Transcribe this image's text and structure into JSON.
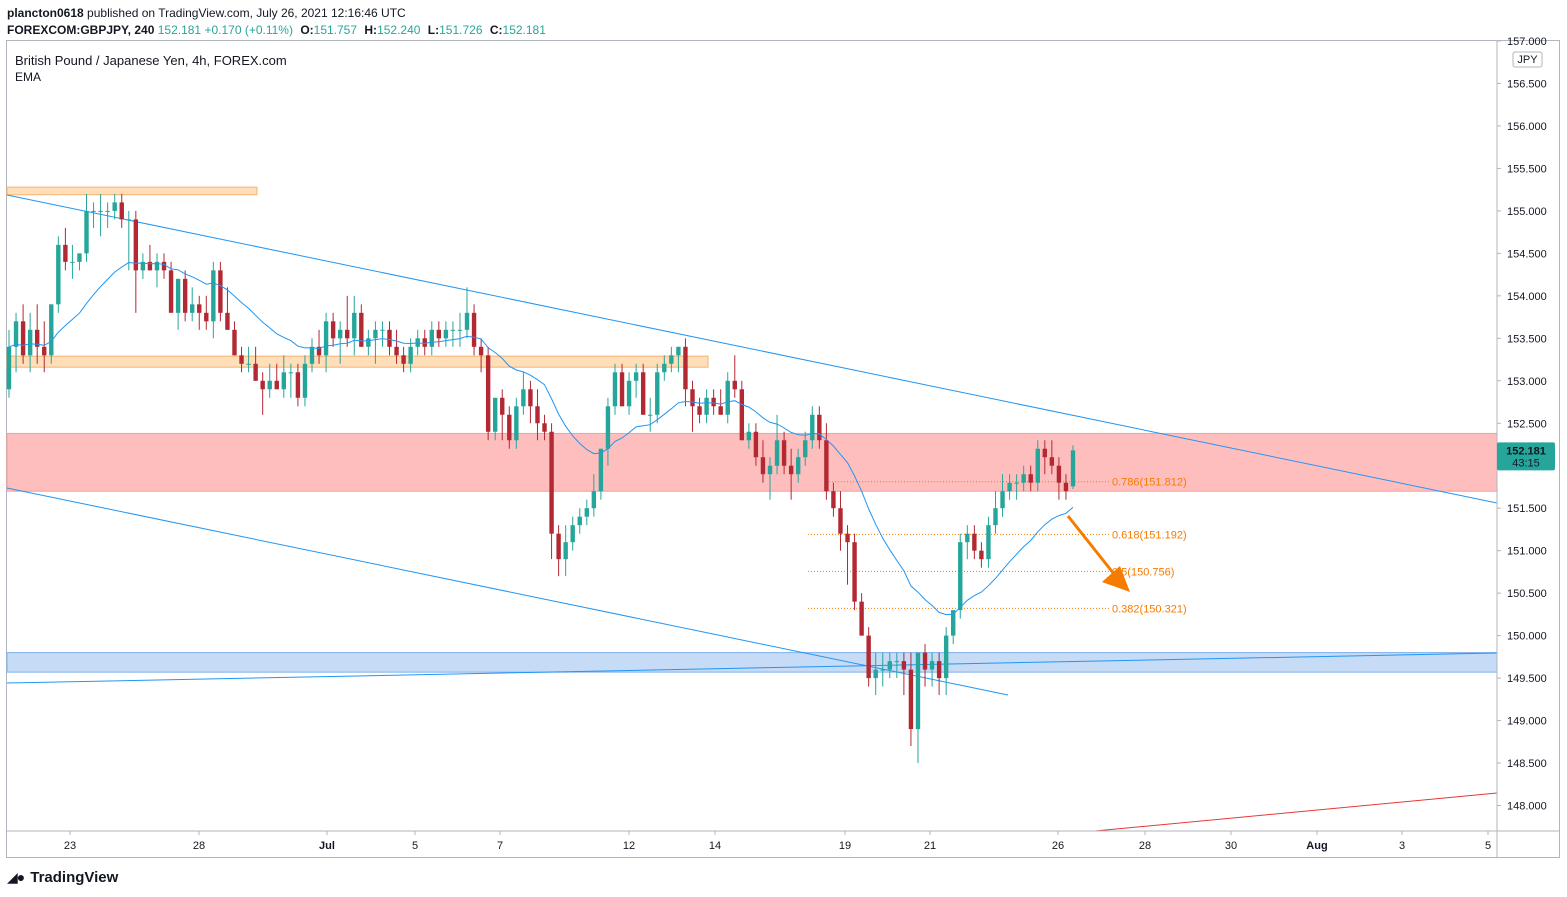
{
  "header": {
    "author": "plancton0618",
    "published_text": "published on TradingView.com, July 26, 2021 12:16:46 UTC",
    "symbol_interval": "FOREXCOM:GBPJPY, 240",
    "last": "152.181",
    "change": "+0.170 (+0.11%)",
    "open_label": "O:",
    "open": "151.757",
    "high_label": "H:",
    "high": "152.240",
    "low_label": "L:",
    "low": "151.726",
    "close_label": "C:",
    "close": "152.181"
  },
  "legend": {
    "title": "British Pound / Japanese Yen, 4h, FOREX.com",
    "indicator": "EMA"
  },
  "currency_badge": "JPY",
  "price_tag": {
    "price": "152.181",
    "countdown": "43:15"
  },
  "brand": {
    "logo_icon": "tradingview-logo-icon",
    "name": "TradingView"
  },
  "colors": {
    "up": "#26a69a",
    "down": "#b22833",
    "ema": "#2196f3",
    "fib": "#f57c00",
    "resistance_zone": "#ffb3b3",
    "supply_zone": "#ffd8ae",
    "support_zone": "#bcd5f5",
    "arrow": "#f57c00",
    "red_line": "#e53935"
  },
  "chart_data": {
    "type": "candlestick",
    "title": "British Pound / Japanese Yen, 4h, FOREX.com",
    "ylim": [
      147.7,
      157.0
    ],
    "y_ticks": [
      "157.000",
      "156.500",
      "156.000",
      "155.500",
      "155.000",
      "154.500",
      "154.000",
      "153.500",
      "153.000",
      "152.500",
      "152.000",
      "151.500",
      "151.000",
      "150.500",
      "150.000",
      "149.500",
      "149.000",
      "148.500",
      "148.000"
    ],
    "x_ticks": [
      "23",
      "28",
      "Jul",
      "5",
      "7",
      "12",
      "14",
      "19",
      "21",
      "26",
      "28",
      "30",
      "Aug",
      "3",
      "5"
    ],
    "zones": [
      {
        "name": "resistance",
        "from": 151.7,
        "to": 152.38
      },
      {
        "name": "supply-1",
        "from": 155.19,
        "to": 155.28
      },
      {
        "name": "supply-2",
        "from": 153.16,
        "to": 153.29
      },
      {
        "name": "support",
        "from": 149.57,
        "to": 149.8
      }
    ],
    "fib_levels": [
      {
        "label": "0.786(151.812)",
        "value": 151.812
      },
      {
        "label": "0.618(151.192)",
        "value": 151.192
      },
      {
        "label": "0.5(150.756)",
        "value": 150.756
      },
      {
        "label": "0.382(150.321)",
        "value": 150.321
      }
    ],
    "last_price": 152.181,
    "candles_ohlc": [
      [
        152.9,
        153.6,
        152.8,
        153.4
      ],
      [
        153.4,
        153.8,
        153.1,
        153.7
      ],
      [
        153.7,
        153.9,
        153.2,
        153.3
      ],
      [
        153.3,
        153.8,
        153.1,
        153.6
      ],
      [
        153.6,
        153.9,
        153.2,
        153.4
      ],
      [
        153.4,
        153.7,
        153.1,
        153.3
      ],
      [
        153.3,
        153.9,
        153.2,
        153.9
      ],
      [
        153.9,
        154.7,
        153.8,
        154.6
      ],
      [
        154.6,
        154.8,
        154.3,
        154.4
      ],
      [
        154.4,
        154.6,
        154.2,
        154.4
      ],
      [
        154.4,
        154.5,
        154.3,
        154.5
      ],
      [
        154.5,
        155.2,
        154.4,
        155.0
      ],
      [
        155.0,
        155.1,
        154.8,
        155.0
      ],
      [
        155.0,
        155.2,
        154.7,
        155.0
      ],
      [
        155.0,
        155.1,
        154.8,
        155.0
      ],
      [
        155.0,
        155.2,
        154.9,
        155.1
      ],
      [
        155.1,
        155.2,
        154.8,
        154.9
      ],
      [
        154.9,
        155.0,
        154.3,
        154.9
      ],
      [
        154.9,
        155.0,
        153.8,
        154.3
      ],
      [
        154.3,
        154.5,
        154.2,
        154.4
      ],
      [
        154.4,
        154.6,
        154.3,
        154.3
      ],
      [
        154.3,
        154.5,
        154.1,
        154.4
      ],
      [
        154.4,
        154.5,
        154.2,
        154.3
      ],
      [
        154.3,
        154.4,
        153.9,
        153.8
      ],
      [
        153.8,
        154.2,
        153.6,
        154.2
      ],
      [
        154.2,
        154.3,
        153.7,
        153.8
      ],
      [
        153.8,
        154.1,
        153.7,
        153.9
      ],
      [
        153.9,
        154.0,
        153.6,
        153.8
      ],
      [
        153.8,
        154.0,
        153.6,
        153.7
      ],
      [
        153.7,
        154.4,
        153.5,
        154.3
      ],
      [
        154.3,
        154.4,
        153.7,
        153.8
      ],
      [
        153.8,
        154.1,
        153.6,
        153.6
      ],
      [
        153.6,
        153.7,
        153.3,
        153.3
      ],
      [
        153.3,
        153.4,
        153.1,
        153.2
      ],
      [
        153.2,
        153.4,
        153.1,
        153.2
      ],
      [
        153.2,
        153.4,
        153.0,
        153.0
      ],
      [
        153.0,
        153.1,
        152.6,
        152.9
      ],
      [
        152.9,
        153.2,
        152.8,
        153.0
      ],
      [
        153.0,
        153.2,
        152.9,
        152.9
      ],
      [
        152.9,
        153.3,
        152.8,
        153.1
      ],
      [
        153.1,
        153.2,
        152.8,
        153.1
      ],
      [
        153.1,
        153.2,
        152.7,
        152.8
      ],
      [
        152.8,
        153.3,
        152.7,
        153.2
      ],
      [
        153.2,
        153.5,
        153.1,
        153.4
      ],
      [
        153.4,
        153.6,
        153.2,
        153.3
      ],
      [
        153.3,
        153.8,
        153.1,
        153.7
      ],
      [
        153.7,
        153.8,
        153.4,
        153.5
      ],
      [
        153.5,
        153.7,
        153.2,
        153.6
      ],
      [
        153.6,
        154.0,
        153.4,
        153.5
      ],
      [
        153.5,
        154.0,
        153.3,
        153.8
      ],
      [
        153.8,
        153.9,
        153.4,
        153.4
      ],
      [
        153.4,
        153.6,
        153.3,
        153.5
      ],
      [
        153.5,
        153.7,
        153.2,
        153.6
      ],
      [
        153.6,
        153.7,
        153.4,
        153.6
      ],
      [
        153.6,
        153.7,
        153.3,
        153.4
      ],
      [
        153.4,
        153.6,
        153.2,
        153.3
      ],
      [
        153.3,
        153.4,
        153.1,
        153.2
      ],
      [
        153.2,
        153.5,
        153.1,
        153.4
      ],
      [
        153.4,
        153.6,
        153.3,
        153.5
      ],
      [
        153.5,
        153.6,
        153.3,
        153.4
      ],
      [
        153.4,
        153.7,
        153.3,
        153.6
      ],
      [
        153.6,
        153.7,
        153.4,
        153.5
      ],
      [
        153.5,
        153.7,
        153.4,
        153.6
      ],
      [
        153.6,
        153.7,
        153.4,
        153.6
      ],
      [
        153.6,
        153.8,
        153.4,
        153.6
      ],
      [
        153.6,
        154.1,
        153.5,
        153.8
      ],
      [
        153.8,
        153.9,
        153.3,
        153.4
      ],
      [
        153.4,
        153.5,
        153.1,
        153.3
      ],
      [
        153.3,
        153.4,
        152.3,
        152.4
      ],
      [
        152.4,
        152.8,
        152.3,
        152.8
      ],
      [
        152.8,
        152.9,
        152.3,
        152.6
      ],
      [
        152.6,
        152.7,
        152.2,
        152.3
      ],
      [
        152.3,
        152.8,
        152.2,
        152.7
      ],
      [
        152.7,
        153.1,
        152.6,
        152.9
      ],
      [
        152.9,
        153.0,
        152.5,
        152.7
      ],
      [
        152.7,
        152.9,
        152.3,
        152.5
      ],
      [
        152.5,
        152.6,
        152.3,
        152.4
      ],
      [
        152.4,
        152.5,
        150.9,
        151.2
      ],
      [
        151.2,
        151.3,
        150.7,
        150.9
      ],
      [
        150.9,
        151.3,
        150.7,
        151.1
      ],
      [
        151.1,
        151.4,
        151.0,
        151.3
      ],
      [
        151.3,
        151.5,
        151.2,
        151.4
      ],
      [
        151.4,
        151.6,
        151.3,
        151.5
      ],
      [
        151.5,
        151.9,
        151.4,
        151.7
      ],
      [
        151.7,
        152.2,
        151.6,
        152.2
      ],
      [
        152.2,
        152.8,
        152.0,
        152.7
      ],
      [
        152.7,
        153.2,
        152.6,
        153.1
      ],
      [
        153.1,
        153.2,
        152.7,
        152.7
      ],
      [
        152.7,
        153.1,
        152.6,
        153.0
      ],
      [
        153.0,
        153.2,
        152.8,
        153.1
      ],
      [
        153.1,
        153.2,
        152.6,
        152.6
      ],
      [
        152.6,
        152.8,
        152.4,
        152.6
      ],
      [
        152.6,
        153.2,
        152.5,
        153.1
      ],
      [
        153.1,
        153.3,
        153.0,
        153.2
      ],
      [
        153.2,
        153.4,
        153.1,
        153.3
      ],
      [
        153.3,
        153.4,
        153.1,
        153.4
      ],
      [
        153.4,
        153.5,
        152.7,
        152.9
      ],
      [
        152.9,
        153.0,
        152.4,
        152.7
      ],
      [
        152.7,
        152.8,
        152.5,
        152.6
      ],
      [
        152.6,
        152.9,
        152.5,
        152.8
      ],
      [
        152.8,
        152.9,
        152.6,
        152.7
      ],
      [
        152.7,
        152.9,
        152.6,
        152.6
      ],
      [
        152.6,
        153.1,
        152.5,
        153.0
      ],
      [
        153.0,
        153.3,
        152.8,
        152.9
      ],
      [
        152.9,
        153.0,
        152.3,
        152.3
      ],
      [
        152.3,
        152.5,
        152.2,
        152.4
      ],
      [
        152.4,
        152.5,
        152.0,
        152.1
      ],
      [
        152.1,
        152.3,
        151.8,
        151.9
      ],
      [
        151.9,
        152.1,
        151.6,
        152.0
      ],
      [
        152.0,
        152.6,
        151.9,
        152.3
      ],
      [
        152.3,
        152.4,
        151.9,
        152.0
      ],
      [
        152.0,
        152.2,
        151.6,
        151.9
      ],
      [
        151.9,
        152.2,
        151.8,
        152.1
      ],
      [
        152.1,
        152.4,
        152.0,
        152.3
      ],
      [
        152.3,
        152.7,
        152.2,
        152.6
      ],
      [
        152.6,
        152.7,
        152.2,
        152.3
      ],
      [
        152.3,
        152.5,
        151.6,
        151.7
      ],
      [
        151.7,
        151.8,
        151.4,
        151.5
      ],
      [
        151.5,
        151.7,
        151.0,
        151.2
      ],
      [
        151.2,
        151.3,
        150.6,
        151.1
      ],
      [
        151.1,
        151.2,
        150.3,
        150.4
      ],
      [
        150.4,
        150.5,
        150.0,
        150.0
      ],
      [
        150.0,
        150.1,
        149.4,
        149.5
      ],
      [
        149.5,
        149.8,
        149.3,
        149.6
      ],
      [
        149.6,
        149.8,
        149.4,
        149.6
      ],
      [
        149.6,
        149.8,
        149.5,
        149.7
      ],
      [
        149.7,
        149.8,
        149.5,
        149.7
      ],
      [
        149.7,
        149.8,
        149.3,
        149.6
      ],
      [
        149.6,
        149.8,
        148.7,
        148.9
      ],
      [
        148.9,
        149.8,
        148.5,
        149.8
      ],
      [
        149.8,
        149.9,
        149.4,
        149.6
      ],
      [
        149.6,
        149.8,
        149.4,
        149.7
      ],
      [
        149.7,
        149.8,
        149.3,
        149.5
      ],
      [
        149.5,
        150.1,
        149.3,
        150.0
      ],
      [
        150.0,
        150.3,
        149.9,
        150.3
      ],
      [
        150.3,
        151.2,
        150.2,
        151.1
      ],
      [
        151.1,
        151.3,
        150.9,
        151.2
      ],
      [
        151.2,
        151.3,
        150.9,
        151.0
      ],
      [
        151.0,
        151.1,
        150.8,
        150.9
      ],
      [
        150.9,
        151.4,
        150.8,
        151.3
      ],
      [
        151.3,
        151.7,
        151.2,
        151.5
      ],
      [
        151.5,
        151.9,
        151.4,
        151.7
      ],
      [
        151.7,
        151.9,
        151.6,
        151.8
      ],
      [
        151.8,
        151.9,
        151.6,
        151.8
      ],
      [
        151.8,
        152.0,
        151.7,
        151.9
      ],
      [
        151.9,
        152.0,
        151.7,
        151.8
      ],
      [
        151.8,
        152.3,
        151.7,
        152.2
      ],
      [
        152.2,
        152.3,
        151.9,
        152.1
      ],
      [
        152.1,
        152.3,
        151.9,
        152.0
      ],
      [
        152.0,
        152.1,
        151.6,
        151.8
      ],
      [
        151.8,
        151.9,
        151.6,
        151.7
      ],
      [
        151.757,
        152.24,
        151.726,
        152.181
      ]
    ]
  }
}
